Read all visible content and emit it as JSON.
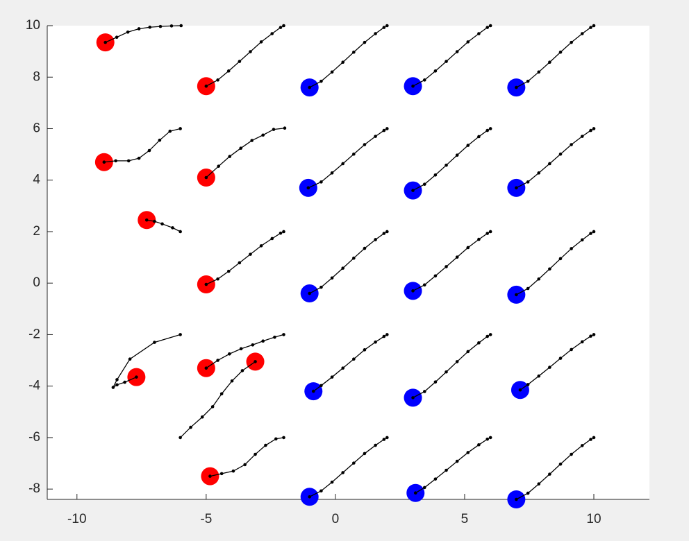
{
  "chart_data": {
    "type": "line",
    "line_color": "#000000",
    "xlim": [
      -11.15,
      12.15
    ],
    "ylim": [
      -8.4,
      10
    ],
    "xticks": [
      -10,
      -5,
      0,
      5,
      10
    ],
    "yticks": [
      -8,
      -6,
      -4,
      -2,
      0,
      2,
      4,
      6,
      8,
      10
    ],
    "grid": false,
    "series": [
      {
        "color": "#ff0000",
        "x": [
          -8.9,
          -8.46,
          -8.03,
          -7.6,
          -7.18,
          -6.77,
          -6.34,
          -5.97
        ],
        "values": [
          9.35,
          9.55,
          9.75,
          9.88,
          9.94,
          9.97,
          9.99,
          10
        ]
      },
      {
        "color": "#ff0000",
        "x": [
          -5,
          -4.55,
          -4.13,
          -3.71,
          -3.29,
          -2.87,
          -2.45,
          -2.12,
          -2
        ],
        "values": [
          7.65,
          7.89,
          8.24,
          8.61,
          8.99,
          9.37,
          9.69,
          9.93,
          10
        ]
      },
      {
        "color": "#0000ff",
        "x": [
          -1,
          -0.55,
          -0.13,
          0.29,
          0.71,
          1.13,
          1.55,
          1.88,
          2
        ],
        "values": [
          7.6,
          7.84,
          8.2,
          8.58,
          8.97,
          9.35,
          9.69,
          9.93,
          10
        ]
      },
      {
        "color": "#0000ff",
        "x": [
          3,
          3.45,
          3.87,
          4.29,
          4.71,
          5.13,
          5.55,
          5.88,
          6
        ],
        "values": [
          7.65,
          7.89,
          8.24,
          8.61,
          8.99,
          9.37,
          9.69,
          9.93,
          10
        ]
      },
      {
        "color": "#0000ff",
        "x": [
          7,
          7.45,
          7.87,
          8.29,
          8.71,
          9.13,
          9.55,
          9.88,
          10
        ],
        "values": [
          7.6,
          7.84,
          8.2,
          8.58,
          8.97,
          9.35,
          9.69,
          9.93,
          10
        ]
      },
      {
        "color": "#ff0000",
        "x": [
          -8.95,
          -8.5,
          -8.0,
          -7.6,
          -7.2,
          -6.8,
          -6.4,
          -6
        ],
        "values": [
          4.7,
          4.75,
          4.75,
          4.85,
          5.15,
          5.55,
          5.9,
          6
        ]
      },
      {
        "color": "#ff0000",
        "x": [
          -5,
          -4.52,
          -4.09,
          -3.66,
          -3.23,
          -2.8,
          -2.39,
          -1.96
        ],
        "values": [
          4.1,
          4.54,
          4.92,
          5.24,
          5.54,
          5.75,
          5.97,
          6.02
        ]
      },
      {
        "color": "#0000ff",
        "x": [
          -1.05,
          -0.55,
          -0.13,
          0.29,
          0.71,
          1.13,
          1.55,
          1.88,
          2
        ],
        "values": [
          3.7,
          3.93,
          4.28,
          4.64,
          5.01,
          5.38,
          5.7,
          5.93,
          6
        ]
      },
      {
        "color": "#0000ff",
        "x": [
          3,
          3.45,
          3.87,
          4.29,
          4.71,
          5.13,
          5.55,
          5.88,
          6
        ],
        "values": [
          3.6,
          3.84,
          4.2,
          4.58,
          4.97,
          5.35,
          5.69,
          5.93,
          6
        ]
      },
      {
        "color": "#0000ff",
        "x": [
          7,
          7.45,
          7.87,
          8.29,
          8.71,
          9.13,
          9.55,
          9.88,
          10
        ],
        "values": [
          3.7,
          3.93,
          4.28,
          4.64,
          5.01,
          5.38,
          5.7,
          5.93,
          6
        ]
      },
      {
        "color": "#ff0000",
        "x": [
          -7.3,
          -7.0,
          -6.7,
          -6.3,
          -6
        ],
        "values": [
          2.45,
          2.4,
          2.3,
          2.15,
          2
        ]
      },
      {
        "color": "#ff0000",
        "x": [
          -5,
          -4.55,
          -4.13,
          -3.71,
          -3.29,
          -2.87,
          -2.45,
          -2.12,
          -2
        ],
        "values": [
          -0.05,
          0.16,
          0.46,
          0.79,
          1.12,
          1.45,
          1.73,
          1.94,
          2
        ]
      },
      {
        "color": "#0000ff",
        "x": [
          -1,
          -0.55,
          -0.13,
          0.29,
          0.71,
          1.13,
          1.55,
          1.88,
          2
        ],
        "values": [
          -0.4,
          -0.16,
          0.2,
          0.58,
          0.97,
          1.35,
          1.69,
          1.93,
          2
        ]
      },
      {
        "color": "#0000ff",
        "x": [
          3,
          3.45,
          3.87,
          4.29,
          4.71,
          5.13,
          5.55,
          5.88,
          6
        ],
        "values": [
          -0.3,
          -0.07,
          0.28,
          0.64,
          1.01,
          1.38,
          1.7,
          1.93,
          2
        ]
      },
      {
        "color": "#0000ff",
        "x": [
          7,
          7.45,
          7.87,
          8.29,
          8.71,
          9.13,
          9.55,
          9.88,
          10
        ],
        "values": [
          -0.45,
          -0.21,
          0.16,
          0.55,
          0.95,
          1.34,
          1.68,
          1.93,
          2
        ]
      },
      {
        "color": "#ff0000",
        "x": [
          -7.7,
          -8.15,
          -8.45,
          -8.6,
          -8.45,
          -7.95,
          -7,
          -6
        ],
        "values": [
          -3.65,
          -3.85,
          -3.95,
          -4.05,
          -3.75,
          -2.95,
          -2.3,
          -2
        ]
      },
      {
        "color": "#ff0000",
        "x": [
          -5,
          -4.55,
          -4.1,
          -3.65,
          -3.2,
          -2.8,
          -2.35,
          -2
        ],
        "values": [
          -3.3,
          -3.0,
          -2.75,
          -2.55,
          -2.4,
          -2.25,
          -2.1,
          -2
        ]
      },
      {
        "color": "#0000ff",
        "x": [
          -0.85,
          -0.55,
          -0.13,
          0.29,
          0.71,
          1.13,
          1.55,
          1.88,
          2
        ],
        "values": [
          -4.2,
          -3.98,
          -3.65,
          -3.3,
          -2.95,
          -2.59,
          -2.29,
          -2.07,
          -2
        ]
      },
      {
        "color": "#0000ff",
        "x": [
          3,
          3.45,
          3.87,
          4.29,
          4.71,
          5.13,
          5.55,
          5.88,
          6
        ],
        "values": [
          -4.45,
          -4.21,
          -3.84,
          -3.45,
          -3.05,
          -2.66,
          -2.32,
          -2.07,
          -2
        ]
      },
      {
        "color": "#0000ff",
        "x": [
          7.15,
          7.45,
          7.87,
          8.29,
          8.71,
          9.13,
          9.55,
          9.88,
          10
        ],
        "values": [
          -4.15,
          -3.94,
          -3.61,
          -3.27,
          -2.92,
          -2.58,
          -2.28,
          -2.06,
          -2
        ]
      },
      {
        "color": "#ff0000",
        "x": [
          -3.1,
          -3.6,
          -4.0,
          -4.4,
          -4.75,
          -5.15,
          -5.6,
          -6
        ],
        "values": [
          -3.05,
          -3.4,
          -3.8,
          -4.3,
          -4.8,
          -5.2,
          -5.6,
          -6
        ]
      },
      {
        "color": "#ff0000",
        "x": [
          -4.85,
          -4.4,
          -3.95,
          -3.5,
          -3.1,
          -2.7,
          -2.3,
          -2
        ],
        "values": [
          -7.5,
          -7.4,
          -7.3,
          -7.05,
          -6.65,
          -6.3,
          -6.05,
          -6
        ]
      },
      {
        "color": "#0000ff",
        "x": [
          -1,
          -0.55,
          -0.13,
          0.29,
          0.71,
          1.13,
          1.55,
          1.88,
          2
        ],
        "values": [
          -8.3,
          -8.07,
          -7.73,
          -7.36,
          -6.99,
          -6.62,
          -6.3,
          -6.07,
          -6
        ]
      },
      {
        "color": "#0000ff",
        "x": [
          3.1,
          3.45,
          3.87,
          4.29,
          4.71,
          5.13,
          5.55,
          5.88,
          6
        ],
        "values": [
          -8.15,
          -7.94,
          -7.61,
          -7.27,
          -6.92,
          -6.58,
          -6.28,
          -6.06,
          -6
        ]
      },
      {
        "color": "#0000ff",
        "x": [
          7,
          7.45,
          7.87,
          8.29,
          8.71,
          9.13,
          9.55,
          9.88,
          10
        ],
        "values": [
          -8.4,
          -8.16,
          -7.8,
          -7.42,
          -7.03,
          -6.65,
          -6.31,
          -6.07,
          -6
        ]
      }
    ]
  }
}
